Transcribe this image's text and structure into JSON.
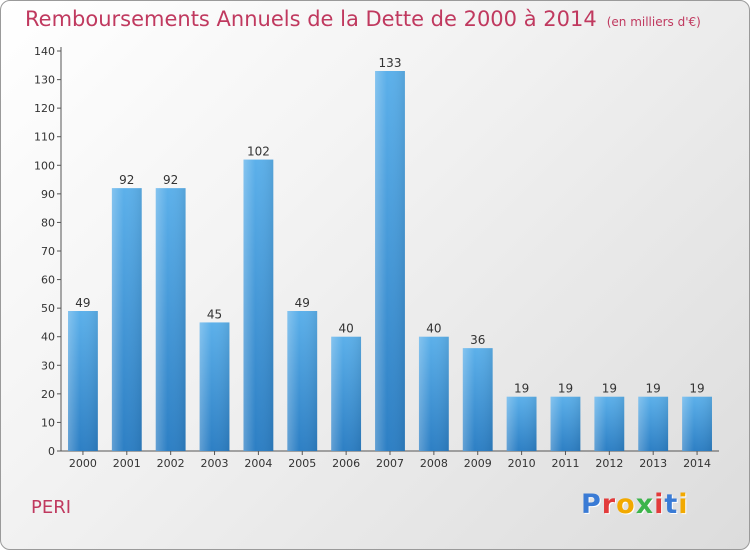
{
  "title": "Remboursements Annuels de la Dette de 2000 à 2014",
  "unit": "(en milliers d'€)",
  "place": "PERI",
  "logo": {
    "text": "Proxiti",
    "colors": [
      "#3a7bd5",
      "#e23b3b",
      "#f2a900",
      "#3cb44b",
      "#e23b3b",
      "#3a7bd5",
      "#f2a900"
    ]
  },
  "chart_data": {
    "type": "bar",
    "categories": [
      "2000",
      "2001",
      "2002",
      "2003",
      "2004",
      "2005",
      "2006",
      "2007",
      "2008",
      "2009",
      "2010",
      "2011",
      "2012",
      "2013",
      "2014"
    ],
    "values": [
      49,
      92,
      92,
      45,
      102,
      49,
      40,
      133,
      40,
      36,
      19,
      19,
      19,
      19,
      19
    ],
    "title": "Remboursements Annuels de la Dette de 2000 à 2014",
    "xlabel": "",
    "ylabel": "",
    "ylim": [
      0,
      140
    ],
    "yticks": [
      0,
      10,
      20,
      30,
      40,
      50,
      60,
      70,
      80,
      90,
      100,
      110,
      120,
      130,
      140
    ],
    "grid": false,
    "bar_color": "#4a9fe0"
  }
}
